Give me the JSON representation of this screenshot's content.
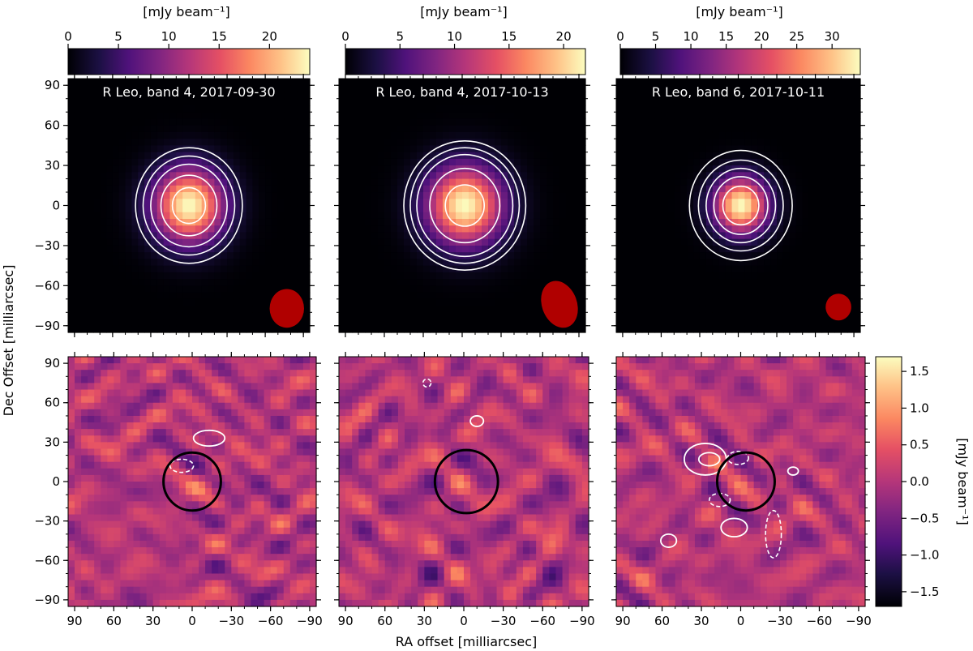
{
  "figure": {
    "xlabel": "RA offset [milliarcsec]",
    "ylabel": "Dec Offset [milliarcsec]",
    "colorbar_top_label": "[mJy beam⁻¹]",
    "colorbar_right_label": "[mJy beam⁻¹]"
  },
  "colors": {
    "beam": "#b00000",
    "contour": "#ffffff",
    "star_circle": "#000000",
    "colormap": "magma"
  },
  "chart_data": [
    {
      "type": "heatmap",
      "panel": "top-left",
      "title": "R Leo, band 4, 2017-09-30",
      "x_ticks": [
        "90",
        "60",
        "30",
        "0",
        "−30",
        "−60",
        "−90"
      ],
      "y_ticks": [
        "90",
        "60",
        "30",
        "0",
        "−30",
        "−60",
        "−90"
      ],
      "xlim": [
        95,
        -95
      ],
      "ylim": [
        -95,
        95
      ],
      "source": {
        "ra": 0,
        "dec": 0,
        "peak_mJy": 24,
        "fwhm_mas": 40
      },
      "contour_radii_mas": [
        13,
        22,
        30,
        36,
        42
      ],
      "beam": {
        "ra": -77,
        "dec": -77,
        "major_mas": 29,
        "minor_mas": 27,
        "pa_deg": 0
      },
      "colorbar": {
        "label": "[mJy beam⁻¹]",
        "ticks": [
          0,
          5,
          10,
          15,
          20
        ],
        "range": [
          0,
          24
        ]
      }
    },
    {
      "type": "heatmap",
      "panel": "top-middle",
      "title": "R Leo, band 4, 2017-10-13",
      "x_ticks": [
        "90",
        "60",
        "30",
        "0",
        "−30",
        "−60",
        "−90"
      ],
      "y_ticks": [
        "90",
        "60",
        "30",
        "0",
        "−30",
        "−60",
        "−90"
      ],
      "xlim": [
        95,
        -95
      ],
      "ylim": [
        -95,
        95
      ],
      "source": {
        "ra": -2,
        "dec": 0,
        "peak_mJy": 22,
        "fwhm_mas": 42
      },
      "contour_radii_mas": [
        15,
        27,
        37,
        42,
        47
      ],
      "beam": {
        "ra": -75,
        "dec": -74,
        "major_mas": 36,
        "minor_mas": 27,
        "pa_deg": -20
      },
      "colorbar": {
        "label": "[mJy beam⁻¹]",
        "ticks": [
          0,
          5,
          10,
          15,
          20
        ],
        "range": [
          0,
          22
        ]
      }
    },
    {
      "type": "heatmap",
      "panel": "top-right",
      "title": "R Leo, band 6, 2017-10-11",
      "x_ticks": [
        "90",
        "60",
        "30",
        "0",
        "−30",
        "−60",
        "−90"
      ],
      "y_ticks": [
        "90",
        "60",
        "30",
        "0",
        "−30",
        "−60",
        "−90"
      ],
      "xlim": [
        95,
        -95
      ],
      "ylim": [
        -95,
        95
      ],
      "source": {
        "ra": -2,
        "dec": 0,
        "peak_mJy": 33,
        "fwhm_mas": 30
      },
      "contour_radii_mas": [
        14,
        21,
        27,
        33,
        40
      ],
      "beam": {
        "ra": -78,
        "dec": -76,
        "major_mas": 20,
        "minor_mas": 20,
        "pa_deg": 0
      },
      "colorbar": {
        "label": "[mJy beam⁻¹]",
        "ticks": [
          0,
          5,
          10,
          15,
          20,
          25,
          30
        ],
        "range": [
          0,
          34
        ]
      }
    },
    {
      "type": "heatmap",
      "panel": "bottom-left",
      "title": "",
      "x_ticks": [
        "90",
        "60",
        "30",
        "0",
        "−30",
        "−60",
        "−90"
      ],
      "y_ticks": [
        "90",
        "60",
        "30",
        "0",
        "−30",
        "−60",
        "−90"
      ],
      "xlim": [
        95,
        -95
      ],
      "ylim": [
        -95,
        95
      ],
      "residual_range_mJy": [
        -1.7,
        1.7
      ],
      "star_circle": {
        "ra": 0,
        "dec": 0,
        "radius_mas": 22
      },
      "positive_contours": [
        {
          "ra": -13,
          "dec": 33,
          "rx": 12,
          "ry": 6
        }
      ],
      "negative_contours": [
        {
          "ra": 8,
          "dec": 12,
          "rx": 9,
          "ry": 5
        }
      ]
    },
    {
      "type": "heatmap",
      "panel": "bottom-middle",
      "title": "",
      "x_ticks": [
        "90",
        "60",
        "30",
        "0",
        "−30",
        "−60",
        "−90"
      ],
      "y_ticks": [
        "90",
        "60",
        "30",
        "0",
        "−30",
        "−60",
        "−90"
      ],
      "xlim": [
        95,
        -95
      ],
      "ylim": [
        -95,
        95
      ],
      "residual_range_mJy": [
        -1.7,
        1.7
      ],
      "star_circle": {
        "ra": -2,
        "dec": 0,
        "radius_mas": 24
      },
      "positive_contours": [
        {
          "ra": -10,
          "dec": 46,
          "rx": 5,
          "ry": 4
        }
      ],
      "negative_contours": [
        {
          "ra": 28,
          "dec": 75,
          "rx": 3,
          "ry": 3
        }
      ]
    },
    {
      "type": "heatmap",
      "panel": "bottom-right",
      "title": "",
      "x_ticks": [
        "90",
        "60",
        "30",
        "0",
        "−30",
        "−60",
        "−90"
      ],
      "y_ticks": [
        "90",
        "60",
        "30",
        "0",
        "−30",
        "−60",
        "−90"
      ],
      "xlim": [
        95,
        -95
      ],
      "ylim": [
        -95,
        95
      ],
      "residual_range_mJy": [
        -1.7,
        1.7
      ],
      "star_circle": {
        "ra": -4,
        "dec": 0,
        "radius_mas": 22
      },
      "positive_contours": [
        {
          "ra": 27,
          "dec": 17,
          "rx": 16,
          "ry": 12
        },
        {
          "ra": 24,
          "dec": 17,
          "rx": 8,
          "ry": 5
        },
        {
          "ra": 5,
          "dec": -35,
          "rx": 10,
          "ry": 7
        },
        {
          "ra": 55,
          "dec": -45,
          "rx": 6,
          "ry": 5
        },
        {
          "ra": -40,
          "dec": 8,
          "rx": 4,
          "ry": 3
        }
      ],
      "negative_contours": [
        {
          "ra": 2,
          "dec": 18,
          "rx": 8,
          "ry": 5
        },
        {
          "ra": 16,
          "dec": -14,
          "rx": 8,
          "ry": 5
        },
        {
          "ra": -25,
          "dec": -40,
          "rx": 6,
          "ry": 18
        }
      ],
      "colorbar": {
        "label": "[mJy beam⁻¹]",
        "ticks": [
          1.5,
          1.0,
          0.5,
          0.0,
          -0.5,
          -1.0,
          -1.5
        ],
        "tick_labels": [
          "1.5",
          "1.0",
          "0.5",
          "0.0",
          "−0.5",
          "−1.0",
          "−1.5"
        ],
        "range": [
          -1.7,
          1.7
        ]
      }
    }
  ]
}
